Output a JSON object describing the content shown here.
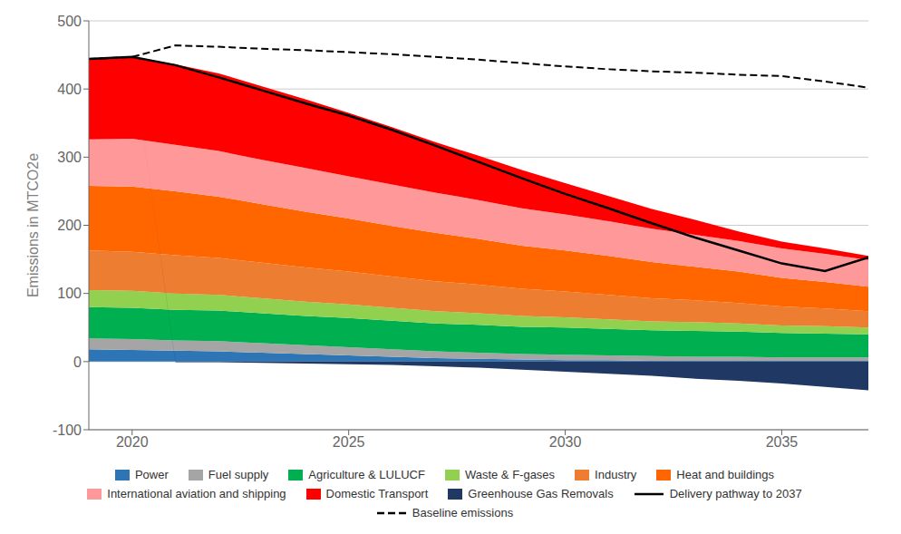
{
  "chart_data": {
    "type": "area",
    "stacked": true,
    "grid": true,
    "legend": "bottom",
    "ylabel": "Emissions in MTCO2e",
    "x": [
      2019,
      2020,
      2021,
      2022,
      2023,
      2024,
      2025,
      2026,
      2027,
      2028,
      2029,
      2030,
      2031,
      2032,
      2033,
      2034,
      2035,
      2036,
      2037
    ],
    "xlim": [
      2019,
      2037
    ],
    "xticks": [
      2020,
      2025,
      2030,
      2035
    ],
    "ylim": [
      -100,
      500
    ],
    "yticks": [
      -100,
      0,
      100,
      200,
      300,
      400,
      500
    ],
    "series": [
      {
        "name": "Power",
        "type": "area",
        "color": "#2e75b6",
        "values": [
          18,
          17,
          16,
          15,
          13,
          11,
          9,
          7,
          5,
          4,
          3,
          2,
          2,
          1,
          1,
          1,
          1,
          1,
          1
        ]
      },
      {
        "name": "Fuel supply",
        "type": "area",
        "color": "#a5a5a5",
        "values": [
          16,
          16,
          15,
          15,
          14,
          13,
          12,
          11,
          10,
          9,
          8,
          8,
          7,
          7,
          6,
          6,
          5,
          5,
          5
        ]
      },
      {
        "name": "Agriculture & LULUCF",
        "type": "area",
        "color": "#00b050",
        "values": [
          46,
          46,
          45,
          45,
          44,
          43,
          43,
          42,
          41,
          41,
          40,
          40,
          39,
          38,
          38,
          37,
          36,
          35,
          34
        ]
      },
      {
        "name": "Waste & F-gases",
        "type": "area",
        "color": "#92d050",
        "values": [
          25,
          25,
          24,
          23,
          22,
          21,
          20,
          19,
          18,
          17,
          16,
          15,
          14,
          13,
          13,
          12,
          11,
          11,
          10
        ]
      },
      {
        "name": "Industry",
        "type": "area",
        "color": "#ed7d31",
        "values": [
          58,
          57,
          56,
          54,
          52,
          50,
          48,
          46,
          44,
          42,
          40,
          38,
          36,
          34,
          32,
          30,
          28,
          26,
          24
        ]
      },
      {
        "name": "Heat and buildings",
        "type": "area",
        "color": "#ff6600",
        "values": [
          95,
          96,
          94,
          90,
          86,
          82,
          78,
          74,
          71,
          67,
          63,
          60,
          57,
          53,
          49,
          46,
          42,
          39,
          36
        ]
      },
      {
        "name": "International aviation and shipping",
        "type": "area",
        "color": "#ff9999",
        "values": [
          68,
          70,
          68,
          67,
          65,
          64,
          62,
          61,
          59,
          57,
          55,
          53,
          51,
          49,
          47,
          45,
          43,
          41,
          39
        ]
      },
      {
        "name": "Domestic Transport",
        "type": "area",
        "color": "#ff0000",
        "values": [
          118,
          120,
          118,
          114,
          108,
          101,
          93,
          84,
          74,
          65,
          56,
          46,
          37,
          29,
          22,
          14,
          10,
          8,
          6
        ]
      },
      {
        "name": "Greenhouse Gas Removals",
        "type": "area",
        "color": "#1f3864",
        "values": [
          0,
          0,
          -1,
          -1,
          -2,
          -3,
          -4,
          -5,
          -7,
          -9,
          -12,
          -15,
          -18,
          -21,
          -25,
          -28,
          -32,
          -37,
          -42
        ]
      },
      {
        "name": "Delivery pathway to 2037",
        "type": "line",
        "color": "#000000",
        "line_style": "solid",
        "values": [
          444,
          447,
          435,
          417,
          398,
          379,
          361,
          340,
          317,
          293,
          269,
          246,
          225,
          203,
          182,
          163,
          144,
          133,
          153
        ]
      },
      {
        "name": "Baseline emissions",
        "type": "line",
        "color": "#000000",
        "line_style": "dashed",
        "values": [
          444,
          447,
          464,
          462,
          459,
          457,
          454,
          451,
          447,
          443,
          438,
          433,
          429,
          426,
          424,
          421,
          419,
          411,
          402
        ]
      }
    ]
  }
}
